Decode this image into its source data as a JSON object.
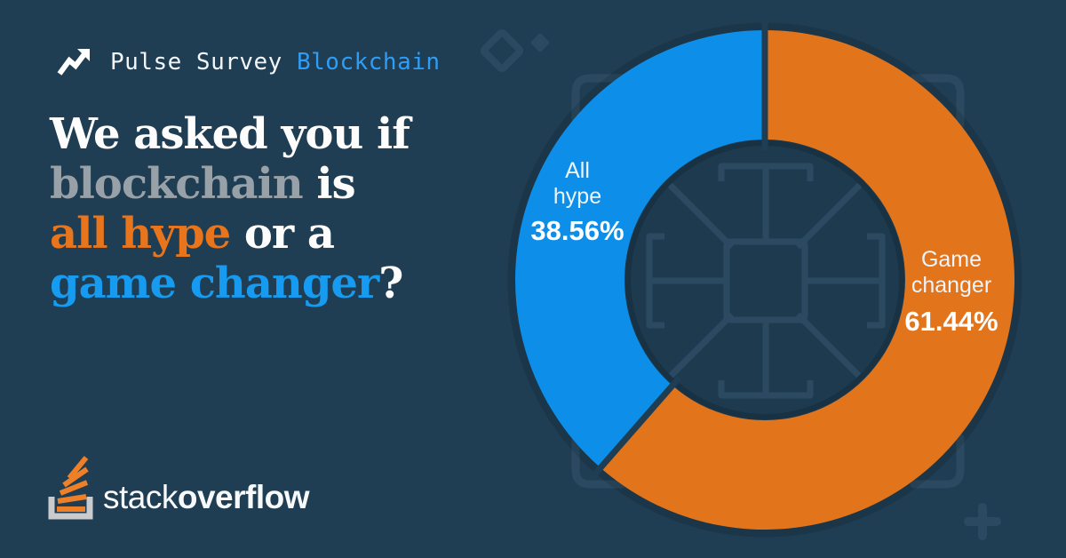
{
  "page": {
    "background": "#1f3e53",
    "pattern_color": "#2b4a62",
    "hole_color": "#1d3a4e"
  },
  "header": {
    "icon": "trending-up-icon",
    "label": "Pulse Survey",
    "label_color": "#f3f6f8",
    "topic": "Blockchain",
    "topic_color": "#2e9df6"
  },
  "headline": {
    "lines": [
      {
        "segments": [
          {
            "text": "We asked you if",
            "color": "#fdfdfd"
          }
        ]
      },
      {
        "segments": [
          {
            "text": "blockchain",
            "color": "#98a1a8"
          },
          {
            "text": " is",
            "color": "#fdfdfd"
          }
        ]
      },
      {
        "segments": [
          {
            "text": "all hype",
            "color": "#e8751c"
          },
          {
            "text": " or a",
            "color": "#fdfdfd"
          }
        ]
      },
      {
        "segments": [
          {
            "text": "game changer",
            "color": "#169bf0"
          },
          {
            "text": "?",
            "color": "#fdfdfd"
          }
        ]
      }
    ]
  },
  "chart_data": {
    "type": "pie",
    "subtype": "donut",
    "title": "We asked you if blockchain is all hype or a game changer?",
    "categories": [
      "All hype",
      "Game changer"
    ],
    "values": [
      38.56,
      61.44
    ],
    "unit": "%",
    "slices": [
      {
        "label": "All hype",
        "label_lines": [
          "All",
          "hype"
        ],
        "value": 38.56,
        "display": "38.56%",
        "color": "#0d8ee9"
      },
      {
        "label": "Game changer",
        "label_lines": [
          "Game",
          "changer"
        ],
        "value": 61.44,
        "display": "61.44%",
        "color": "#e2741c"
      }
    ],
    "start_angle_deg": 90,
    "direction": "ccw",
    "inner_ratio": 0.562,
    "gap_color": "#1f3e53",
    "labels_position": "on-slice",
    "legend": "none"
  },
  "logo": {
    "brand_light": "stack",
    "brand_bold": "overflow",
    "text_color": "#f8f9fa",
    "tray_color": "#c9cbcd",
    "bars_color": "#f08027"
  }
}
